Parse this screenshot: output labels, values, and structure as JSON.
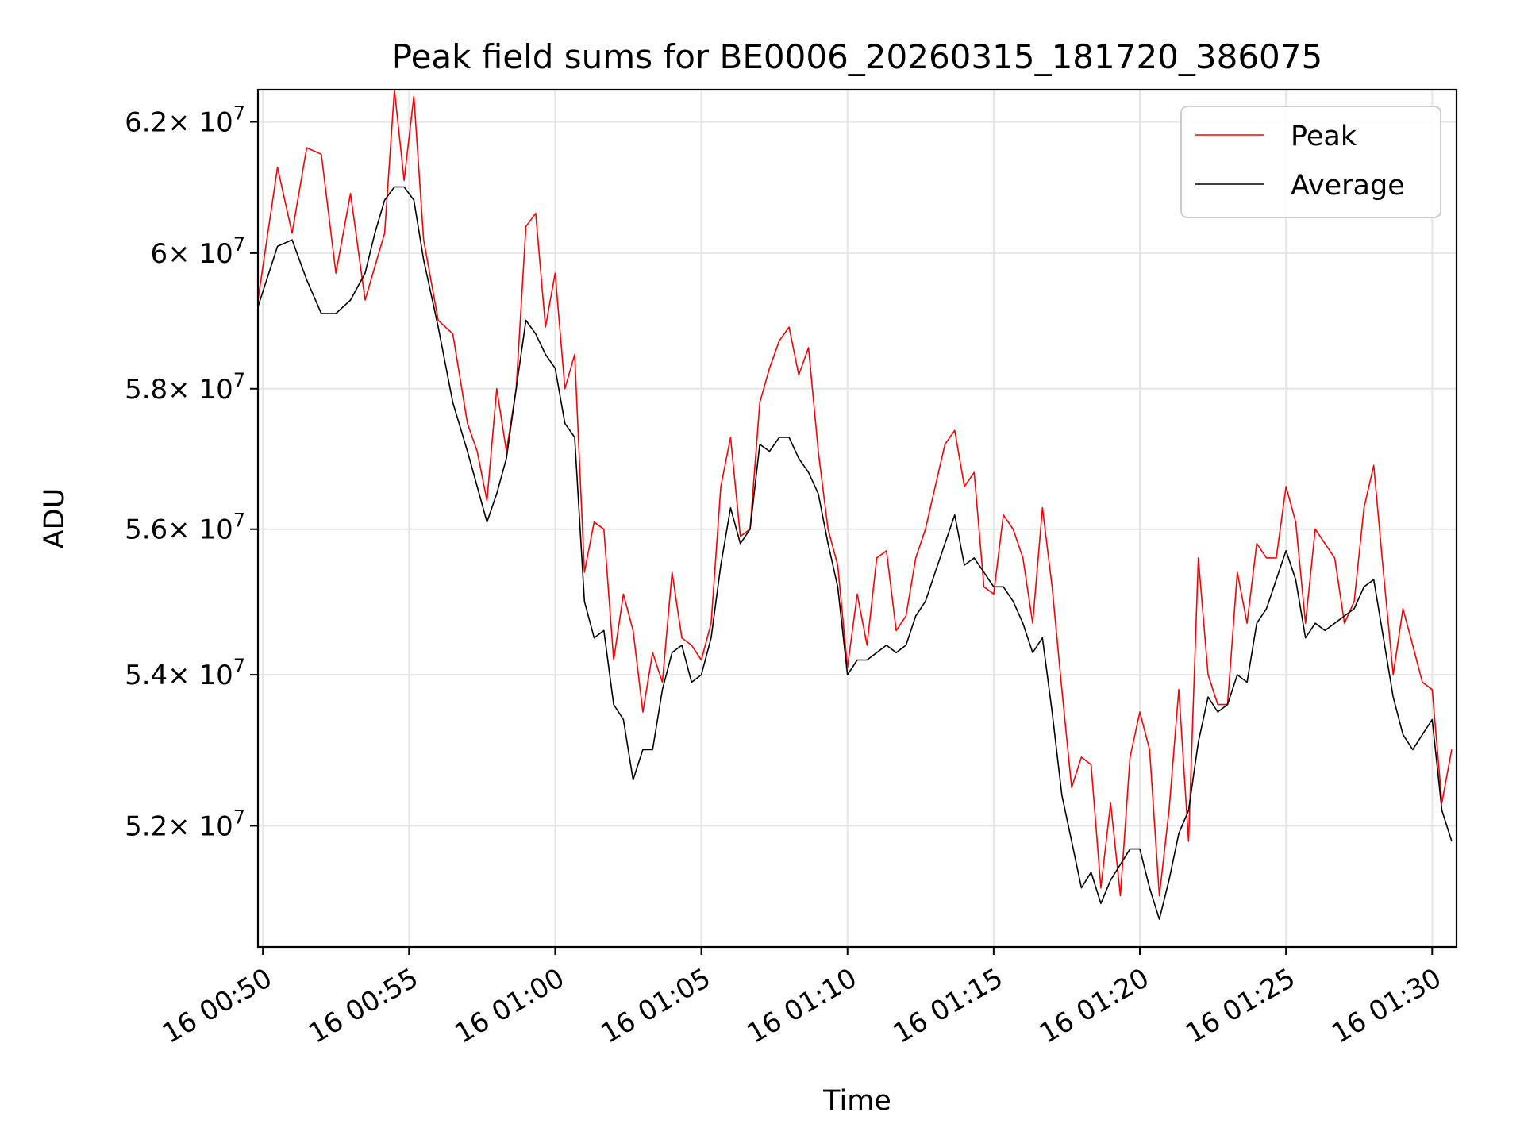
{
  "chart_data": {
    "type": "line",
    "title": "Peak field sums for BE0006_20260315_181720_386075",
    "xlabel": "Time",
    "ylabel": "ADU",
    "yscale": "log",
    "grid": true,
    "legend_position": "top-right",
    "ylim": [
      50450000,
      62500000
    ],
    "xlim": [
      "00:49:50",
      "01:30:50"
    ],
    "x_ticks": [
      "00:50:00",
      "00:55:00",
      "01:00:00",
      "01:05:00",
      "01:10:00",
      "01:15:00",
      "01:20:00",
      "01:25:00",
      "01:30:00"
    ],
    "x_tick_labels": [
      "16 00:50",
      "16 00:55",
      "16 01:00",
      "16 01:05",
      "16 01:10",
      "16 01:15",
      "16 01:20",
      "16 01:25",
      "16 01:30"
    ],
    "y_ticks": [
      {
        "value": 52000000,
        "base": "5.2",
        "exp": "7"
      },
      {
        "value": 54000000,
        "base": "5.4",
        "exp": "7"
      },
      {
        "value": 56000000,
        "base": "5.6",
        "exp": "7"
      },
      {
        "value": 58000000,
        "base": "5.8",
        "exp": "7"
      },
      {
        "value": 60000000,
        "base": "6",
        "exp": "7"
      },
      {
        "value": 62000000,
        "base": "6.2",
        "exp": "7"
      }
    ],
    "y_tick_prefix": "× 10",
    "series": [
      {
        "name": "Peak",
        "color": "#ff0000",
        "x": [
          "00:49:50",
          "00:50:30",
          "00:51:00",
          "00:51:30",
          "00:52:00",
          "00:52:30",
          "00:53:00",
          "00:53:30",
          "00:53:50",
          "00:54:10",
          "00:54:30",
          "00:54:50",
          "00:55:10",
          "00:55:30",
          "00:56:00",
          "00:56:30",
          "00:57:00",
          "00:57:20",
          "00:57:40",
          "00:58:00",
          "00:58:20",
          "00:58:40",
          "00:59:00",
          "00:59:20",
          "00:59:40",
          "01:00:00",
          "01:00:20",
          "01:00:40",
          "01:01:00",
          "01:01:20",
          "01:01:40",
          "01:02:00",
          "01:02:20",
          "01:02:40",
          "01:03:00",
          "01:03:20",
          "01:03:40",
          "01:04:00",
          "01:04:20",
          "01:04:40",
          "01:05:00",
          "01:05:20",
          "01:05:40",
          "01:06:00",
          "01:06:20",
          "01:06:40",
          "01:07:00",
          "01:07:20",
          "01:07:40",
          "01:08:00",
          "01:08:20",
          "01:08:40",
          "01:09:00",
          "01:09:20",
          "01:09:40",
          "01:10:00",
          "01:10:20",
          "01:10:40",
          "01:11:00",
          "01:11:20",
          "01:11:40",
          "01:12:00",
          "01:12:20",
          "01:12:40",
          "01:13:00",
          "01:13:20",
          "01:13:40",
          "01:14:00",
          "01:14:20",
          "01:14:40",
          "01:15:00",
          "01:15:20",
          "01:15:40",
          "01:16:00",
          "01:16:20",
          "01:16:40",
          "01:17:00",
          "01:17:20",
          "01:17:40",
          "01:18:00",
          "01:18:20",
          "01:18:40",
          "01:19:00",
          "01:19:20",
          "01:19:40",
          "01:20:00",
          "01:20:20",
          "01:20:40",
          "01:21:00",
          "01:21:20",
          "01:21:40",
          "01:22:00",
          "01:22:20",
          "01:22:40",
          "01:23:00",
          "01:23:20",
          "01:23:40",
          "01:24:00",
          "01:24:20",
          "01:24:40",
          "01:25:00",
          "01:25:20",
          "01:25:40",
          "01:26:00",
          "01:26:20",
          "01:26:40",
          "01:27:00",
          "01:27:20",
          "01:27:40",
          "01:28:00",
          "01:28:20",
          "01:28:40",
          "01:29:00",
          "01:29:20",
          "01:29:40",
          "01:30:00",
          "01:30:20",
          "01:30:40"
        ],
        "values": [
          59300000,
          61300000,
          60300000,
          61600000,
          61500000,
          59700000,
          60900000,
          59300000,
          59800000,
          60300000,
          62500000,
          61100000,
          62400000,
          60200000,
          59000000,
          58800000,
          57500000,
          57100000,
          56400000,
          58000000,
          57100000,
          58000000,
          60400000,
          60600000,
          58900000,
          59700000,
          58000000,
          58500000,
          55400000,
          56100000,
          56000000,
          54200000,
          55100000,
          54600000,
          53500000,
          54300000,
          53900000,
          55400000,
          54500000,
          54400000,
          54200000,
          54700000,
          56600000,
          57300000,
          55900000,
          56000000,
          57800000,
          58300000,
          58700000,
          58900000,
          58200000,
          58600000,
          57100000,
          56000000,
          55500000,
          54100000,
          55100000,
          54400000,
          55600000,
          55700000,
          54600000,
          54800000,
          55600000,
          56000000,
          56600000,
          57200000,
          57400000,
          56600000,
          56800000,
          55200000,
          55100000,
          56200000,
          56000000,
          55600000,
          54700000,
          56300000,
          55200000,
          53800000,
          52500000,
          52900000,
          52800000,
          51200000,
          52300000,
          51100000,
          52900000,
          53500000,
          53000000,
          51100000,
          52200000,
          53800000,
          51800000,
          55600000,
          54000000,
          53600000,
          53600000,
          55400000,
          54700000,
          55800000,
          55600000,
          55600000,
          56600000,
          56100000,
          54700000,
          56000000,
          55800000,
          55600000,
          54700000,
          55000000,
          56300000,
          56900000,
          55400000,
          54000000,
          54900000,
          54400000,
          53900000,
          53800000,
          52300000,
          53000000
        ]
      },
      {
        "name": "Average",
        "color": "#000000",
        "x": [
          "00:49:50",
          "00:50:30",
          "00:51:00",
          "00:51:30",
          "00:52:00",
          "00:52:30",
          "00:53:00",
          "00:53:30",
          "00:53:50",
          "00:54:10",
          "00:54:30",
          "00:54:50",
          "00:55:10",
          "00:55:30",
          "00:56:00",
          "00:56:30",
          "00:57:00",
          "00:57:20",
          "00:57:40",
          "00:58:00",
          "00:58:20",
          "00:58:40",
          "00:59:00",
          "00:59:20",
          "00:59:40",
          "01:00:00",
          "01:00:20",
          "01:00:40",
          "01:01:00",
          "01:01:20",
          "01:01:40",
          "01:02:00",
          "01:02:20",
          "01:02:40",
          "01:03:00",
          "01:03:20",
          "01:03:40",
          "01:04:00",
          "01:04:20",
          "01:04:40",
          "01:05:00",
          "01:05:20",
          "01:05:40",
          "01:06:00",
          "01:06:20",
          "01:06:40",
          "01:07:00",
          "01:07:20",
          "01:07:40",
          "01:08:00",
          "01:08:20",
          "01:08:40",
          "01:09:00",
          "01:09:20",
          "01:09:40",
          "01:10:00",
          "01:10:20",
          "01:10:40",
          "01:11:00",
          "01:11:20",
          "01:11:40",
          "01:12:00",
          "01:12:20",
          "01:12:40",
          "01:13:00",
          "01:13:20",
          "01:13:40",
          "01:14:00",
          "01:14:20",
          "01:14:40",
          "01:15:00",
          "01:15:20",
          "01:15:40",
          "01:16:00",
          "01:16:20",
          "01:16:40",
          "01:17:00",
          "01:17:20",
          "01:17:40",
          "01:18:00",
          "01:18:20",
          "01:18:40",
          "01:19:00",
          "01:19:20",
          "01:19:40",
          "01:20:00",
          "01:20:20",
          "01:20:40",
          "01:21:00",
          "01:21:20",
          "01:21:40",
          "01:22:00",
          "01:22:20",
          "01:22:40",
          "01:23:00",
          "01:23:20",
          "01:23:40",
          "01:24:00",
          "01:24:20",
          "01:24:40",
          "01:25:00",
          "01:25:20",
          "01:25:40",
          "01:26:00",
          "01:26:20",
          "01:26:40",
          "01:27:00",
          "01:27:20",
          "01:27:40",
          "01:28:00",
          "01:28:20",
          "01:28:40",
          "01:29:00",
          "01:29:20",
          "01:29:40",
          "01:30:00",
          "01:30:20",
          "01:30:40"
        ],
        "values": [
          59200000,
          60100000,
          60200000,
          59600000,
          59100000,
          59100000,
          59300000,
          59700000,
          60300000,
          60800000,
          61000000,
          61000000,
          60800000,
          59900000,
          58900000,
          57800000,
          57100000,
          56600000,
          56100000,
          56500000,
          57000000,
          58000000,
          59000000,
          58800000,
          58500000,
          58300000,
          57500000,
          57300000,
          55000000,
          54500000,
          54600000,
          53600000,
          53400000,
          52600000,
          53000000,
          53000000,
          53800000,
          54300000,
          54400000,
          53900000,
          54000000,
          54500000,
          55500000,
          56300000,
          55800000,
          56000000,
          57200000,
          57100000,
          57300000,
          57300000,
          57000000,
          56800000,
          56500000,
          55800000,
          55200000,
          54000000,
          54200000,
          54200000,
          54300000,
          54400000,
          54300000,
          54400000,
          54800000,
          55000000,
          55400000,
          55800000,
          56200000,
          55500000,
          55600000,
          55400000,
          55200000,
          55200000,
          55000000,
          54700000,
          54300000,
          54500000,
          53500000,
          52400000,
          51800000,
          51200000,
          51400000,
          51000000,
          51300000,
          51500000,
          51700000,
          51700000,
          51200000,
          50800000,
          51300000,
          51900000,
          52200000,
          53100000,
          53700000,
          53500000,
          53600000,
          54000000,
          53900000,
          54700000,
          54900000,
          55300000,
          55700000,
          55300000,
          54500000,
          54700000,
          54600000,
          54700000,
          54800000,
          54900000,
          55200000,
          55300000,
          54500000,
          53700000,
          53200000,
          53000000,
          53200000,
          53400000,
          52200000,
          51800000
        ]
      }
    ]
  }
}
